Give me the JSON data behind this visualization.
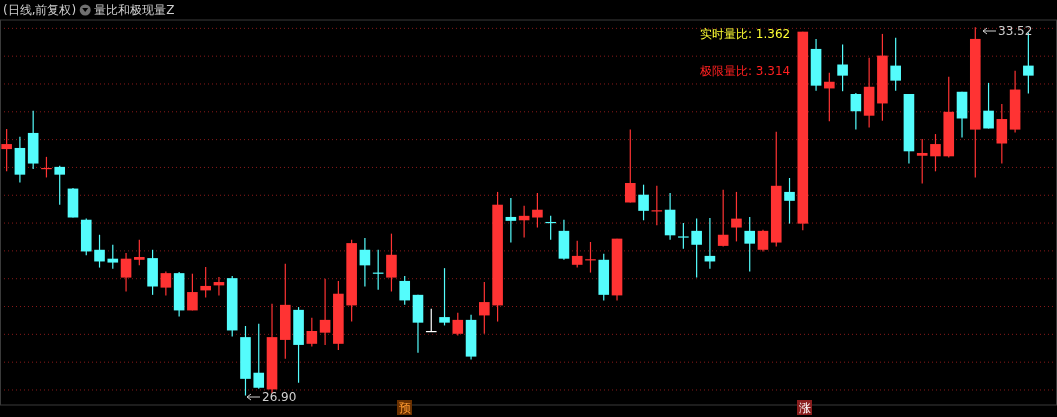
{
  "chart_data": {
    "type": "candlestick",
    "title": "(日线,前复权)",
    "subtitle": "量比和极现量Z",
    "categories": [
      null,
      null,
      null,
      null,
      null,
      null,
      null,
      null,
      null,
      null,
      null,
      null,
      null,
      null,
      null,
      null,
      null,
      null,
      null,
      null,
      null,
      null,
      null,
      null,
      null,
      null,
      null,
      null,
      null,
      null,
      null,
      null,
      null,
      null,
      null,
      null,
      null,
      null,
      null,
      null,
      null,
      null,
      null,
      null,
      null,
      null,
      null,
      null,
      null,
      null,
      null,
      null,
      null,
      null,
      null,
      null,
      null,
      null,
      null,
      null,
      null,
      null,
      null,
      null,
      null,
      null,
      null,
      null,
      null,
      null,
      null,
      null,
      null,
      null,
      null,
      null,
      null,
      null
    ],
    "ohlc": [
      [
        31.33,
        31.69,
        30.93,
        31.42
      ],
      [
        31.35,
        31.55,
        30.73,
        30.87
      ],
      [
        31.62,
        32.02,
        30.97,
        31.07
      ],
      [
        30.98,
        31.19,
        30.82,
        30.99
      ],
      [
        31.01,
        31.03,
        30.33,
        30.87
      ],
      [
        30.62,
        30.63,
        30.1,
        30.1
      ],
      [
        30.06,
        30.08,
        29.42,
        29.49
      ],
      [
        29.52,
        29.79,
        29.2,
        29.31
      ],
      [
        29.36,
        29.61,
        29.18,
        29.29
      ],
      [
        29.02,
        29.46,
        28.77,
        29.36
      ],
      [
        29.34,
        29.7,
        29.24,
        29.39
      ],
      [
        29.37,
        29.52,
        28.71,
        28.86
      ],
      [
        28.84,
        29.13,
        28.7,
        29.1
      ],
      [
        29.1,
        29.12,
        28.32,
        28.43
      ],
      [
        28.43,
        29.09,
        28.43,
        28.76
      ],
      [
        28.79,
        29.21,
        28.66,
        28.87
      ],
      [
        28.88,
        29.03,
        28.7,
        28.94
      ],
      [
        29.01,
        29.05,
        27.96,
        28.07
      ],
      [
        27.95,
        28.15,
        26.9,
        27.2
      ],
      [
        27.31,
        28.19,
        27.02,
        27.04
      ],
      [
        27.01,
        28.55,
        26.94,
        27.95
      ],
      [
        27.9,
        29.27,
        27.56,
        28.53
      ],
      [
        28.44,
        28.49,
        27.13,
        27.81
      ],
      [
        27.83,
        28.3,
        27.78,
        28.06
      ],
      [
        28.03,
        29.0,
        27.81,
        28.26
      ],
      [
        27.83,
        28.96,
        27.72,
        28.73
      ],
      [
        28.52,
        29.7,
        28.23,
        29.64
      ],
      [
        29.52,
        29.73,
        28.86,
        29.24
      ],
      [
        29.11,
        29.52,
        28.8,
        29.1
      ],
      [
        29.02,
        29.81,
        28.77,
        29.43
      ],
      [
        28.96,
        29.05,
        28.53,
        28.61
      ],
      [
        28.71,
        28.71,
        27.67,
        28.21
      ],
      [
        28.06,
        28.46,
        28.05,
        28.06
      ],
      [
        28.31,
        29.19,
        28.16,
        28.21
      ],
      [
        28.01,
        28.39,
        27.98,
        28.26
      ],
      [
        28.26,
        28.35,
        27.55,
        27.6
      ],
      [
        28.34,
        28.94,
        28.01,
        28.58
      ],
      [
        28.52,
        30.56,
        28.23,
        30.33
      ],
      [
        30.11,
        30.45,
        29.65,
        30.04
      ],
      [
        30.05,
        30.31,
        29.74,
        30.13
      ],
      [
        30.1,
        30.54,
        29.92,
        30.24
      ],
      [
        30.02,
        30.13,
        29.7,
        30.01
      ],
      [
        29.86,
        30.06,
        29.34,
        29.36
      ],
      [
        29.25,
        29.68,
        29.2,
        29.41
      ],
      [
        29.34,
        29.66,
        29.11,
        29.35
      ],
      [
        29.34,
        29.45,
        28.61,
        28.71
      ],
      [
        28.7,
        29.72,
        28.61,
        29.72
      ],
      [
        30.37,
        31.68,
        30.37,
        30.72
      ],
      [
        30.51,
        30.69,
        30.05,
        30.22
      ],
      [
        30.22,
        30.67,
        29.96,
        30.23
      ],
      [
        30.24,
        30.54,
        29.7,
        29.78
      ],
      [
        29.76,
        30.0,
        29.54,
        29.75
      ],
      [
        29.86,
        30.08,
        29.02,
        29.61
      ],
      [
        29.41,
        30.09,
        29.18,
        29.31
      ],
      [
        29.59,
        30.6,
        29.58,
        29.79
      ],
      [
        29.92,
        30.56,
        29.67,
        30.08
      ],
      [
        29.86,
        30.11,
        29.13,
        29.63
      ],
      [
        29.52,
        29.88,
        29.49,
        29.86
      ],
      [
        29.65,
        31.64,
        29.58,
        30.67
      ],
      [
        30.56,
        30.81,
        29.99,
        30.4
      ],
      [
        29.99,
        33.44,
        29.87,
        33.44
      ],
      [
        33.13,
        33.31,
        32.38,
        32.47
      ],
      [
        32.42,
        32.7,
        31.83,
        32.54
      ],
      [
        32.85,
        33.21,
        32.37,
        32.65
      ],
      [
        32.32,
        32.34,
        31.68,
        32.01
      ],
      [
        31.93,
        32.97,
        31.72,
        32.45
      ],
      [
        32.15,
        33.4,
        31.84,
        33.01
      ],
      [
        32.83,
        33.33,
        32.38,
        32.56
      ],
      [
        32.32,
        32.32,
        31.07,
        31.29
      ],
      [
        31.21,
        31.51,
        30.71,
        31.26
      ],
      [
        31.2,
        31.6,
        30.93,
        31.42
      ],
      [
        31.2,
        32.63,
        31.18,
        32.0
      ],
      [
        32.36,
        32.36,
        31.54,
        31.88
      ],
      [
        31.68,
        33.52,
        30.82,
        33.31
      ],
      [
        32.02,
        32.52,
        31.7,
        31.7
      ],
      [
        31.43,
        32.14,
        31.07,
        31.87
      ],
      [
        31.68,
        32.74,
        31.63,
        32.4
      ],
      [
        32.83,
        33.42,
        32.33,
        32.65
      ]
    ],
    "ylim": [
      26.73,
      33.65
    ],
    "yticks": [
      {
        "value": 27.0,
        "label": null
      },
      {
        "value": 27.5,
        "label": null
      },
      {
        "value": 28.0,
        "label": null
      },
      {
        "value": 28.5,
        "label": null
      },
      {
        "value": 29.0,
        "label": null
      },
      {
        "value": 29.5,
        "label": null
      },
      {
        "value": 30.0,
        "label": null
      },
      {
        "value": 30.5,
        "label": null
      },
      {
        "value": 31.0,
        "label": null
      },
      {
        "value": 31.5,
        "label": null
      },
      {
        "value": 32.0,
        "label": null
      },
      {
        "value": 32.5,
        "label": null
      },
      {
        "value": 33.0,
        "label": null
      },
      {
        "value": 33.5,
        "label": null
      }
    ],
    "grid": "y",
    "annotations": [
      "实时量比: 1.362",
      "极限量比: 3.314",
      "33.52",
      "26.90",
      "预",
      "涨"
    ]
  }
}
